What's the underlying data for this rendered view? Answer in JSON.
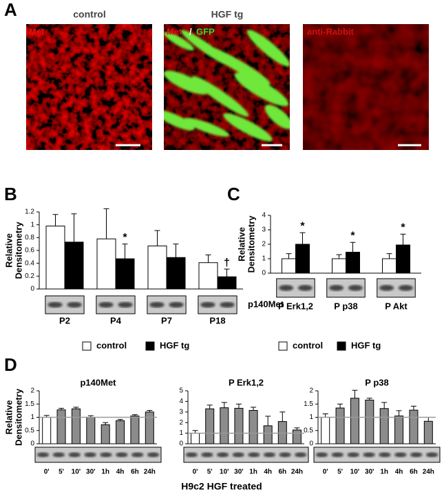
{
  "panel_letters": [
    "A",
    "B",
    "C",
    "D"
  ],
  "panel_a": {
    "titles": [
      "control",
      "HGF tg"
    ],
    "overlays": [
      "Met",
      "Met",
      "/",
      "GFP",
      "anti-Rabbit"
    ]
  },
  "footer": "H9c2 HGF treated",
  "chart_data": [
    {
      "type": "bar",
      "ylabel": [
        "Relative",
        "Densitometry"
      ],
      "categories": [
        "P2",
        "P4",
        "P7",
        "P18"
      ],
      "series": [
        {
          "name": "control",
          "color": "#ffffff",
          "values": [
            0.98,
            0.78,
            0.67,
            0.41
          ],
          "errors": [
            0.18,
            0.47,
            0.24,
            0.12
          ]
        },
        {
          "name": "HGF tg",
          "color": "#000000",
          "values": [
            0.73,
            0.47,
            0.49,
            0.19
          ],
          "errors": [
            0.44,
            0.23,
            0.21,
            0.12
          ]
        }
      ],
      "ylim": [
        0,
        1.2
      ],
      "yticks": [
        0,
        0.2,
        0.4,
        0.6,
        0.8,
        1,
        1.2
      ],
      "annotations": [
        {
          "text": "*",
          "series": 1,
          "category": "P4"
        },
        {
          "text": "†",
          "series": 1,
          "category": "P18"
        }
      ],
      "blot_label": "p140Met",
      "legend": "bottom"
    },
    {
      "type": "bar",
      "ylabel": [
        "Relative",
        "Densitometry"
      ],
      "categories": [
        "P Erk1,2",
        "P p38",
        "P Akt"
      ],
      "series": [
        {
          "name": "control",
          "color": "#ffffff",
          "values": [
            1,
            1,
            1
          ],
          "errors": [
            0.35,
            0.28,
            0.35
          ]
        },
        {
          "name": "HGF tg",
          "color": "#000000",
          "values": [
            2,
            1.45,
            1.95
          ],
          "errors": [
            0.8,
            0.68,
            0.75
          ]
        }
      ],
      "ylim": [
        0,
        4
      ],
      "yticks": [
        0,
        1,
        2,
        3,
        4
      ],
      "annotations": [
        {
          "text": "*",
          "series": 1,
          "category": "P Erk1,2"
        },
        {
          "text": "*",
          "series": 1,
          "category": "P p38"
        },
        {
          "text": "*",
          "series": 1,
          "category": "P Akt"
        }
      ],
      "legend": "bottom"
    },
    {
      "type": "bar",
      "title": "p140Met",
      "ylabel": [
        "Relative",
        "Densitometry"
      ],
      "categories": [
        "0'",
        "5'",
        "10'",
        "30'",
        "1h",
        "4h",
        "6h",
        "24h"
      ],
      "series": [
        {
          "values": [
            1,
            1.28,
            1.32,
            1.0,
            0.72,
            0.87,
            1.05,
            1.2
          ],
          "errors": [
            0.07,
            0.06,
            0.06,
            0.06,
            0.08,
            0.05,
            0.05,
            0.06
          ],
          "colors": [
            "#ffffff",
            "#8c8c8c",
            "#8c8c8c",
            "#8c8c8c",
            "#8c8c8c",
            "#8c8c8c",
            "#8c8c8c",
            "#8c8c8c"
          ]
        }
      ],
      "ylim": [
        0,
        2
      ],
      "yticks": [
        0,
        0.5,
        1,
        1.5,
        2
      ],
      "reference_line": 1
    },
    {
      "type": "bar",
      "title": "P Erk1,2",
      "categories": [
        "0'",
        "5'",
        "10'",
        "30'",
        "1h",
        "4h",
        "6h",
        "24h"
      ],
      "series": [
        {
          "values": [
            1,
            3.3,
            3.4,
            3.35,
            3.15,
            1.7,
            2.1,
            1.3
          ],
          "errors": [
            0.25,
            0.35,
            0.5,
            0.4,
            0.3,
            0.9,
            0.9,
            0.2
          ],
          "colors": [
            "#ffffff",
            "#8c8c8c",
            "#8c8c8c",
            "#8c8c8c",
            "#8c8c8c",
            "#8c8c8c",
            "#8c8c8c",
            "#8c8c8c"
          ]
        }
      ],
      "ylim": [
        0,
        5
      ],
      "yticks": [
        0,
        1,
        2,
        3,
        4,
        5
      ],
      "reference_line": 1
    },
    {
      "type": "bar",
      "title": "P p38",
      "categories": [
        "0'",
        "5'",
        "10'",
        "30'",
        "1h",
        "4h",
        "6h",
        "24h"
      ],
      "series": [
        {
          "values": [
            1,
            1.35,
            1.72,
            1.65,
            1.33,
            1.05,
            1.27,
            0.85
          ],
          "errors": [
            0.13,
            0.15,
            0.3,
            0.07,
            0.23,
            0.2,
            0.15,
            0.15
          ],
          "colors": [
            "#ffffff",
            "#8c8c8c",
            "#8c8c8c",
            "#8c8c8c",
            "#8c8c8c",
            "#8c8c8c",
            "#8c8c8c",
            "#8c8c8c"
          ]
        }
      ],
      "ylim": [
        0,
        2
      ],
      "yticks": [
        0,
        0.5,
        1,
        1.5,
        2
      ],
      "reference_line": 1
    }
  ]
}
